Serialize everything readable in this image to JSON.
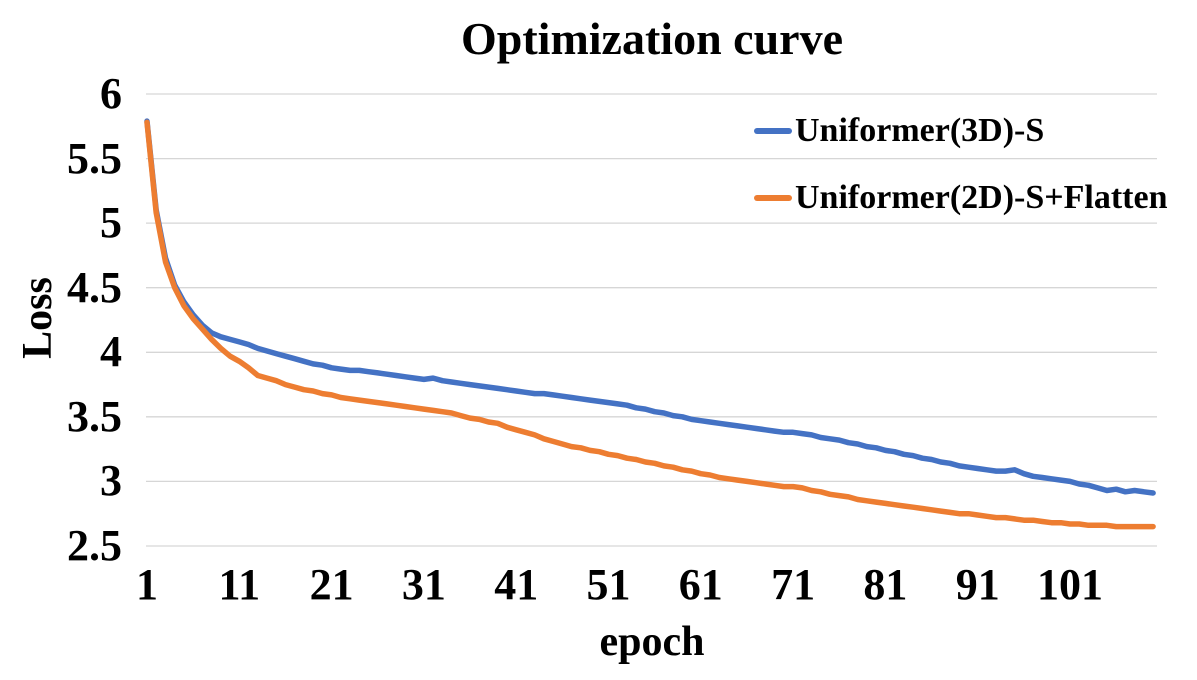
{
  "chart_data": {
    "type": "line",
    "title": "Optimization curve",
    "xlabel": "epoch",
    "ylabel": "Loss",
    "x_ticks": [
      1,
      11,
      21,
      31,
      41,
      51,
      61,
      71,
      81,
      91,
      101
    ],
    "y_ticks": [
      6,
      5.5,
      5,
      4.5,
      4,
      3.5,
      3,
      2.5
    ],
    "xlim": [
      1,
      110
    ],
    "ylim": [
      2.5,
      6
    ],
    "grid": "horizontal-only",
    "grid_color": "#D6D6D6",
    "legend_position": "inside-top-right",
    "x": [
      1,
      2,
      3,
      4,
      5,
      6,
      7,
      8,
      9,
      10,
      11,
      12,
      13,
      14,
      15,
      16,
      17,
      18,
      19,
      20,
      21,
      22,
      23,
      24,
      25,
      26,
      27,
      28,
      29,
      30,
      31,
      32,
      33,
      34,
      35,
      36,
      37,
      38,
      39,
      40,
      41,
      42,
      43,
      44,
      45,
      46,
      47,
      48,
      49,
      50,
      51,
      52,
      53,
      54,
      55,
      56,
      57,
      58,
      59,
      60,
      61,
      62,
      63,
      64,
      65,
      66,
      67,
      68,
      69,
      70,
      71,
      72,
      73,
      74,
      75,
      76,
      77,
      78,
      79,
      80,
      81,
      82,
      83,
      84,
      85,
      86,
      87,
      88,
      89,
      90,
      91,
      92,
      93,
      94,
      95,
      96,
      97,
      98,
      99,
      100,
      101,
      102,
      103,
      104,
      105,
      106,
      107,
      108,
      109,
      110
    ],
    "series": [
      {
        "name": "Uniformer(3D)-S",
        "color": "#4472C4",
        "values": [
          5.79,
          5.1,
          4.73,
          4.52,
          4.39,
          4.29,
          4.21,
          4.15,
          4.12,
          4.1,
          4.08,
          4.06,
          4.03,
          4.01,
          3.99,
          3.97,
          3.95,
          3.93,
          3.91,
          3.9,
          3.88,
          3.87,
          3.86,
          3.86,
          3.85,
          3.84,
          3.83,
          3.82,
          3.81,
          3.8,
          3.79,
          3.8,
          3.78,
          3.77,
          3.76,
          3.75,
          3.74,
          3.73,
          3.72,
          3.71,
          3.7,
          3.69,
          3.68,
          3.68,
          3.67,
          3.66,
          3.65,
          3.64,
          3.63,
          3.62,
          3.61,
          3.6,
          3.59,
          3.57,
          3.56,
          3.54,
          3.53,
          3.51,
          3.5,
          3.48,
          3.47,
          3.46,
          3.45,
          3.44,
          3.43,
          3.42,
          3.41,
          3.4,
          3.39,
          3.38,
          3.38,
          3.37,
          3.36,
          3.34,
          3.33,
          3.32,
          3.3,
          3.29,
          3.27,
          3.26,
          3.24,
          3.23,
          3.21,
          3.2,
          3.18,
          3.17,
          3.15,
          3.14,
          3.12,
          3.11,
          3.1,
          3.09,
          3.08,
          3.08,
          3.09,
          3.06,
          3.04,
          3.03,
          3.02,
          3.01,
          3.0,
          2.98,
          2.97,
          2.95,
          2.93,
          2.94,
          2.92,
          2.93,
          2.92,
          2.91
        ]
      },
      {
        "name": "Uniformer(2D)-S+Flatten",
        "color": "#ED7D31",
        "values": [
          5.78,
          5.08,
          4.7,
          4.5,
          4.36,
          4.26,
          4.18,
          4.1,
          4.03,
          3.97,
          3.93,
          3.88,
          3.82,
          3.8,
          3.78,
          3.75,
          3.73,
          3.71,
          3.7,
          3.68,
          3.67,
          3.65,
          3.64,
          3.63,
          3.62,
          3.61,
          3.6,
          3.59,
          3.58,
          3.57,
          3.56,
          3.55,
          3.54,
          3.53,
          3.51,
          3.49,
          3.48,
          3.46,
          3.45,
          3.42,
          3.4,
          3.38,
          3.36,
          3.33,
          3.31,
          3.29,
          3.27,
          3.26,
          3.24,
          3.23,
          3.21,
          3.2,
          3.18,
          3.17,
          3.15,
          3.14,
          3.12,
          3.11,
          3.09,
          3.08,
          3.06,
          3.05,
          3.03,
          3.02,
          3.01,
          3.0,
          2.99,
          2.98,
          2.97,
          2.96,
          2.96,
          2.95,
          2.93,
          2.92,
          2.9,
          2.89,
          2.88,
          2.86,
          2.85,
          2.84,
          2.83,
          2.82,
          2.81,
          2.8,
          2.79,
          2.78,
          2.77,
          2.76,
          2.75,
          2.75,
          2.74,
          2.73,
          2.72,
          2.72,
          2.71,
          2.7,
          2.7,
          2.69,
          2.68,
          2.68,
          2.67,
          2.67,
          2.66,
          2.66,
          2.66,
          2.65,
          2.65,
          2.65,
          2.65,
          2.65
        ]
      }
    ]
  },
  "style": {
    "background": "#FFFFFF",
    "text_color": "#000000"
  }
}
